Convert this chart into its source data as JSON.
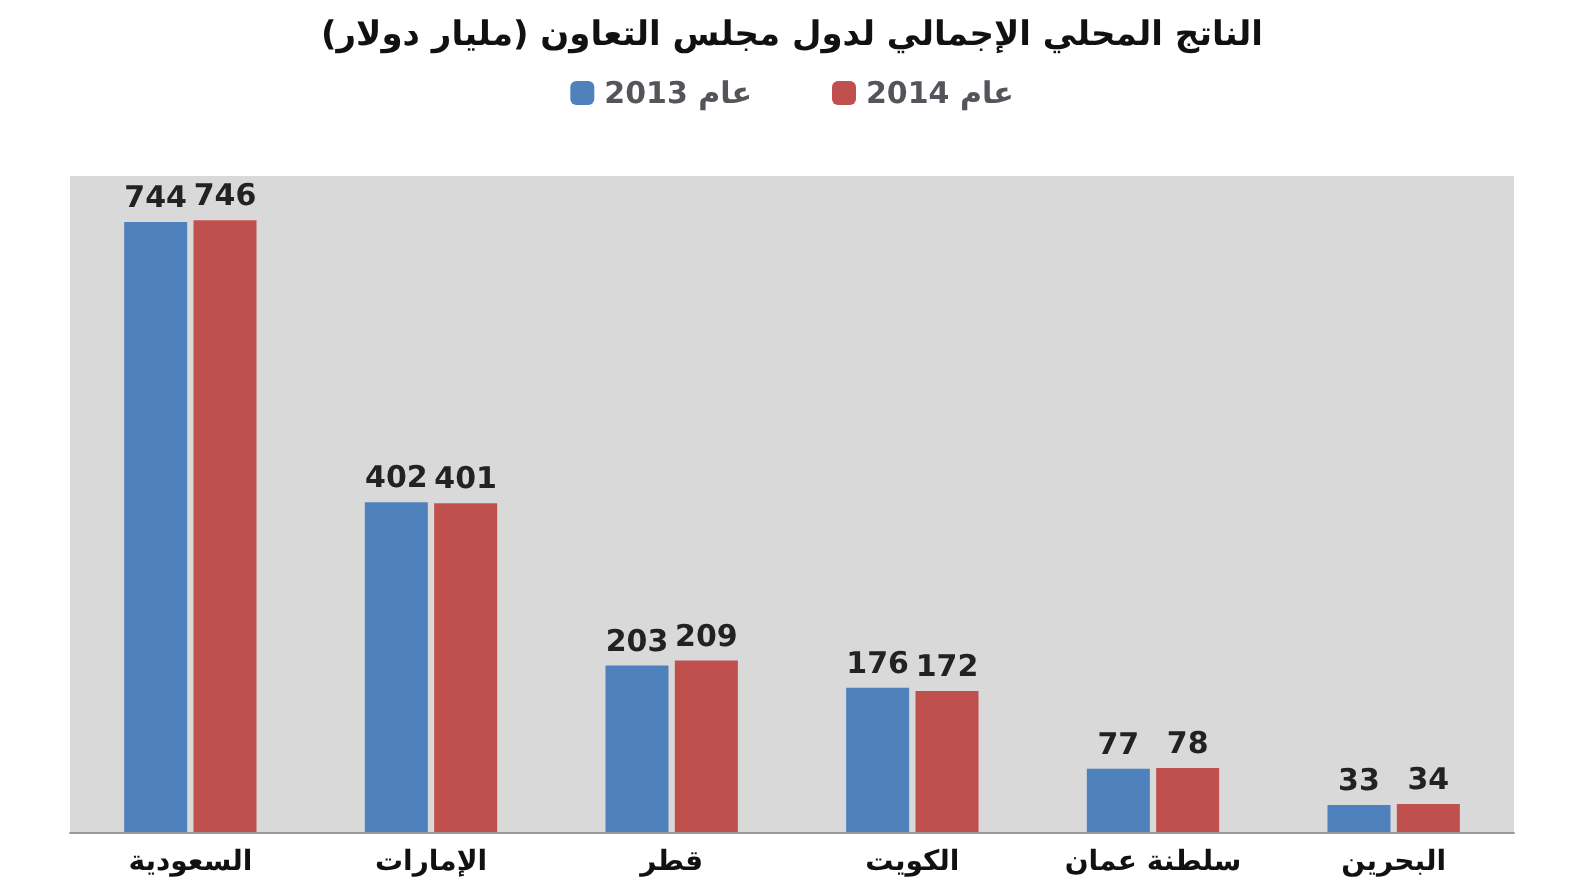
{
  "chart_data": {
    "type": "bar",
    "title": "الناتج المحلي الإجمالي لدول مجلس التعاون (مليار دولار)",
    "categories": [
      "السعودية",
      "الإمارات",
      "قطر",
      "الكويت",
      "سلطنة عمان",
      "البحرين"
    ],
    "series": [
      {
        "name": "عام 2013",
        "color": "#4f81bd",
        "values": [
          744,
          402,
          203,
          176,
          77,
          33
        ]
      },
      {
        "name": "عام 2014",
        "color": "#c0504d",
        "values": [
          746,
          401,
          209,
          172,
          78,
          34
        ]
      }
    ],
    "data_labels": true,
    "legend": "top",
    "grid": false
  }
}
